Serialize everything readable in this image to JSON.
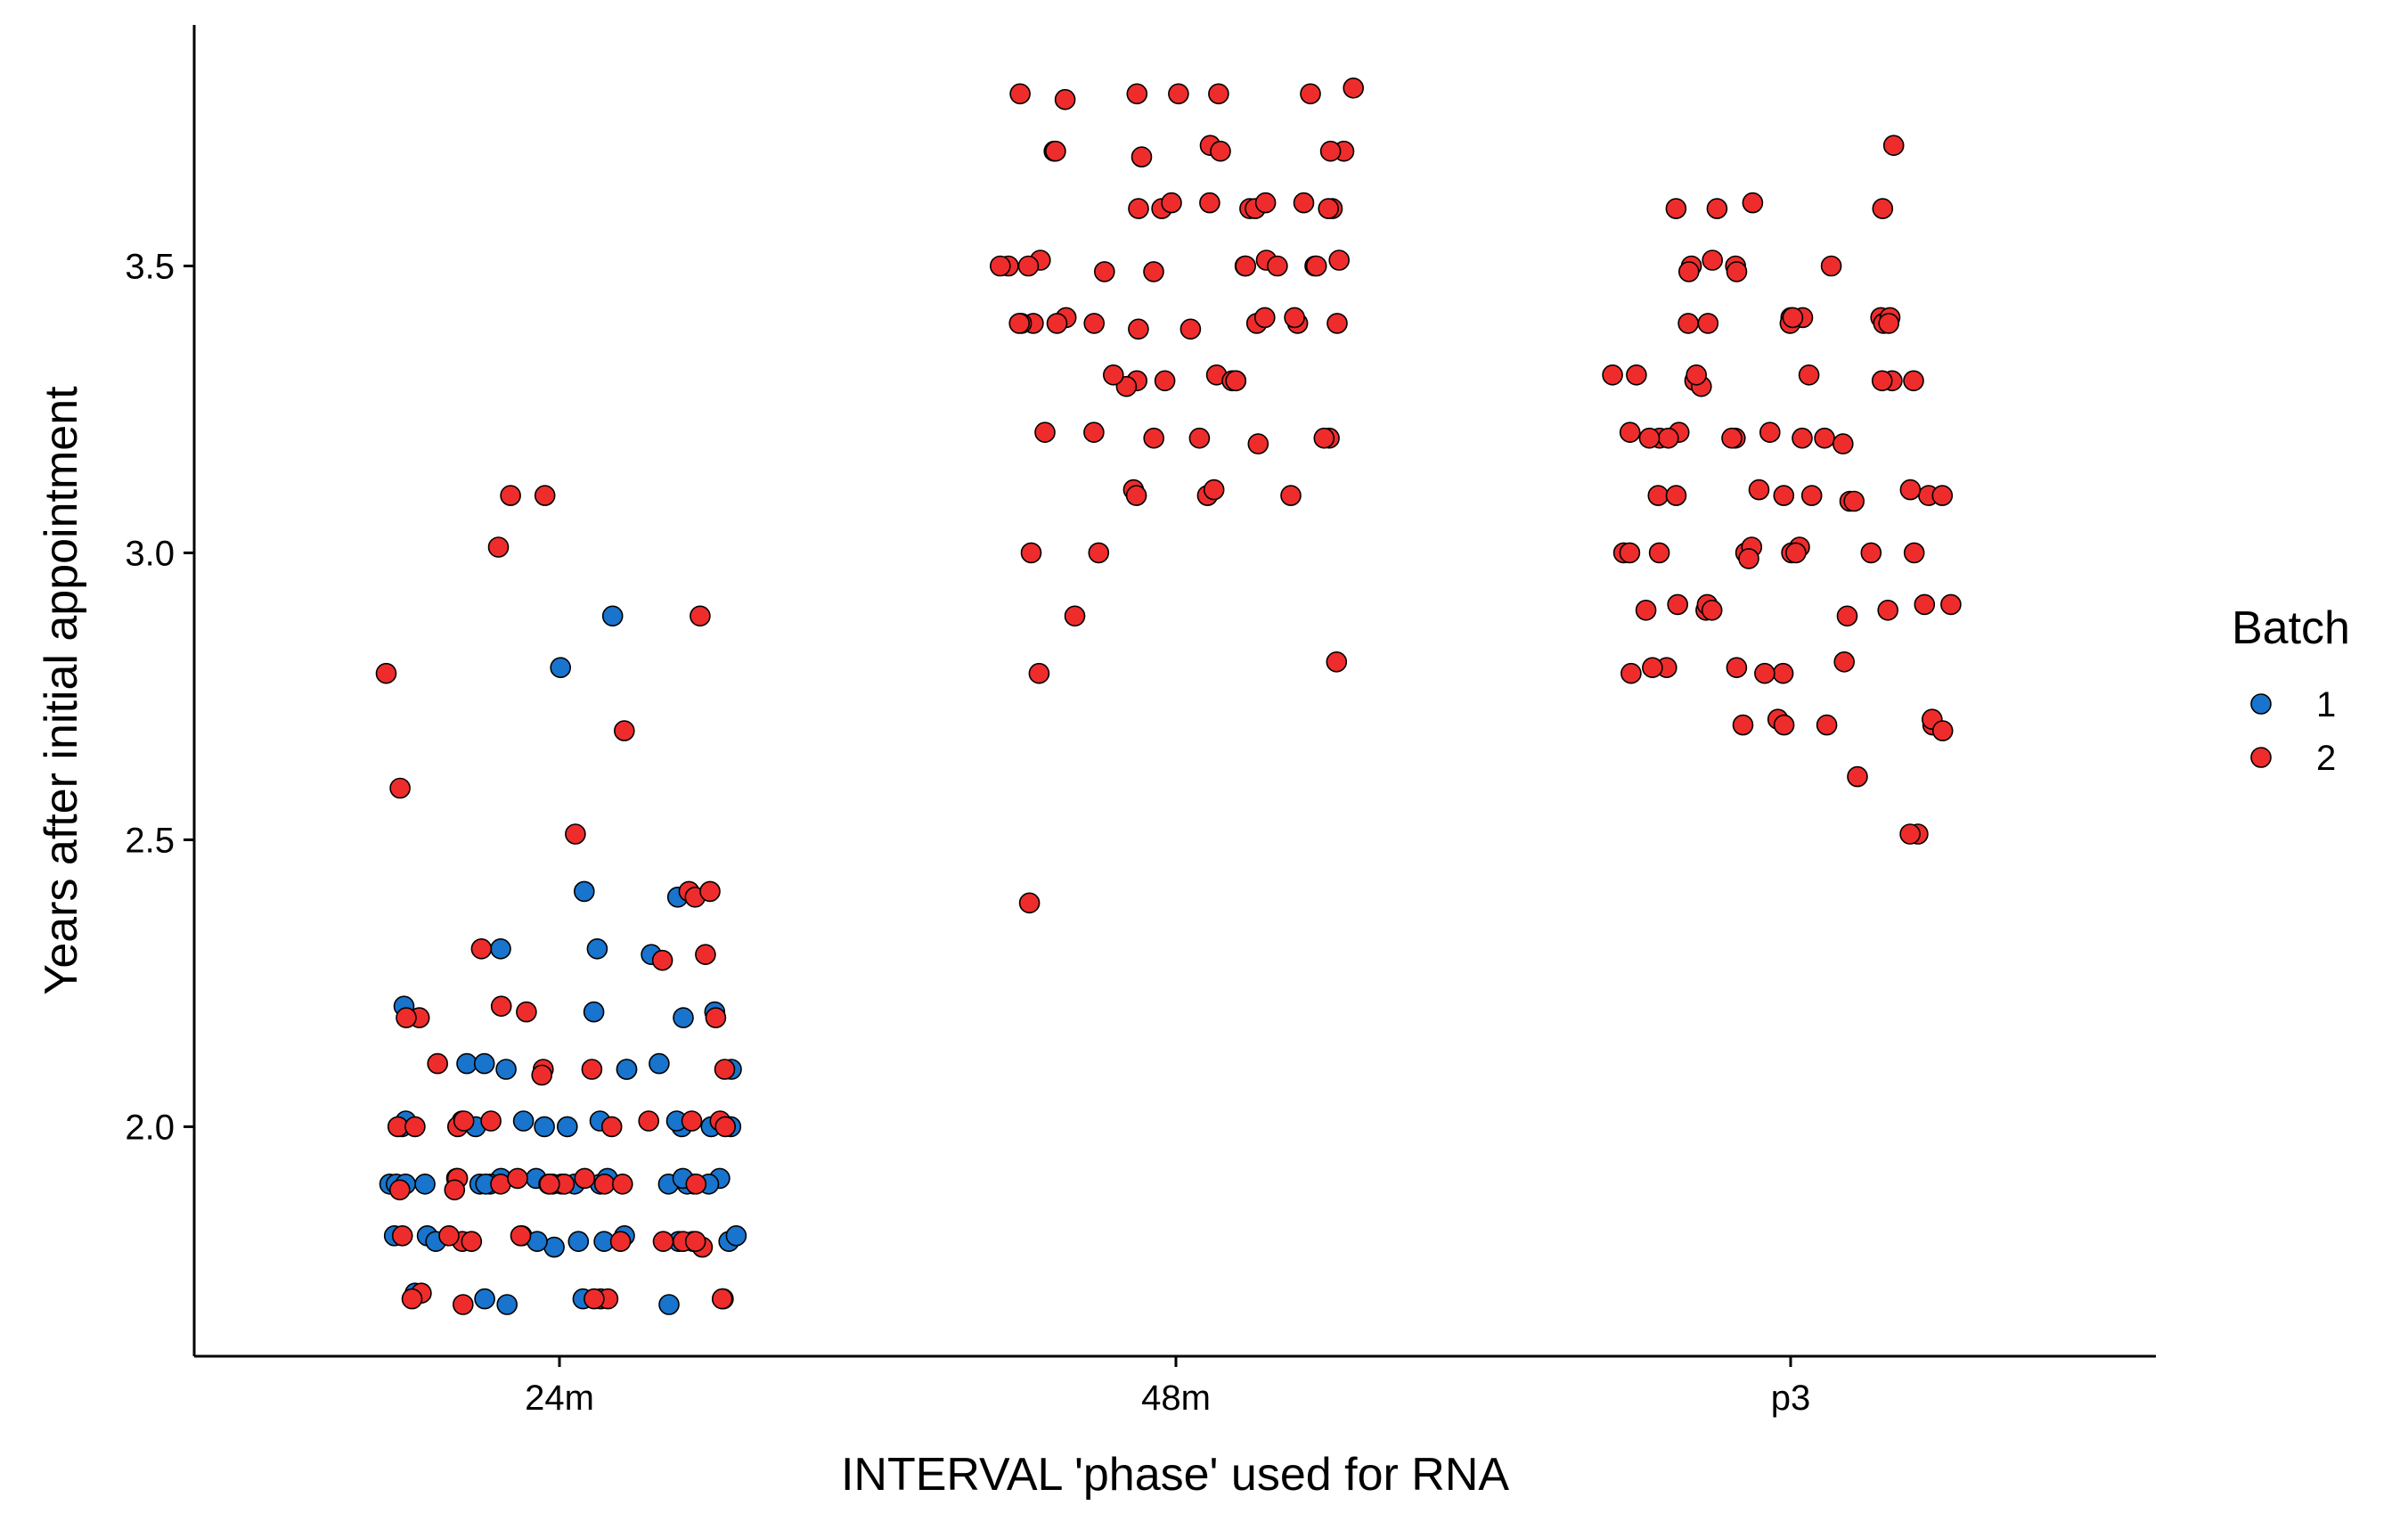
{
  "chart_data": {
    "type": "scatter",
    "title": "",
    "xlabel": "INTERVAL 'phase' used for RNA",
    "ylabel": "Years after initial appointment",
    "categories": [
      "24m",
      "48m",
      "p3"
    ],
    "ylim": [
      1.6,
      3.92
    ],
    "yticks": [
      2.0,
      2.5,
      3.0,
      3.5
    ],
    "ytick_labels": [
      "2.0",
      "2.5",
      "3.0",
      "3.5"
    ],
    "grid": false,
    "legend": {
      "title": "Batch",
      "placement": "right",
      "entries": [
        {
          "label": "1",
          "color": "#1874CD"
        },
        {
          "label": "2",
          "color": "#EE2C2C"
        }
      ]
    },
    "series": [
      {
        "name": "1",
        "color": "#1874CD",
        "points": [
          {
            "category": "24m",
            "y_values": [
              2.8,
              2.89,
              2.4,
              2.41,
              2.31,
              2.31,
              2.3,
              2.21,
              2.2,
              2.2,
              2.19,
              2.1,
              2.11,
              2.1,
              2.11,
              2.1,
              2.11,
              2.1,
              2.01,
              2.0,
              2.0,
              2.01,
              2.0,
              2.0,
              2.01,
              2.0,
              2.01,
              2.0,
              2.0,
              2.01,
              1.9,
              1.91,
              1.9,
              1.9,
              1.91,
              1.9,
              1.9,
              1.91,
              1.9,
              1.9,
              1.9,
              1.91,
              1.9,
              1.9,
              1.9,
              1.91,
              1.9,
              1.9,
              1.9,
              1.91,
              1.9,
              1.81,
              1.8,
              1.81,
              1.8,
              1.8,
              1.81,
              1.8,
              1.8,
              1.81,
              1.8,
              1.79,
              1.8,
              1.81,
              1.7,
              1.71,
              1.7,
              1.7,
              1.69,
              1.69,
              1.7
            ]
          }
        ]
      },
      {
        "name": "2",
        "color": "#EE2C2C",
        "points": [
          {
            "category": "24m",
            "y_values": [
              3.1,
              3.1,
              3.01,
              2.89,
              2.79,
              2.69,
              2.59,
              2.51,
              2.41,
              2.4,
              2.41,
              2.31,
              2.3,
              2.29,
              2.21,
              2.19,
              2.19,
              2.2,
              2.19,
              2.1,
              2.09,
              2.1,
              2.11,
              2.1,
              2.01,
              2.0,
              2.01,
              2.0,
              2.01,
              2.0,
              2.0,
              2.01,
              2.0,
              2.01,
              1.9,
              1.91,
              1.89,
              1.9,
              1.9,
              1.91,
              1.9,
              1.9,
              1.89,
              1.9,
              1.91,
              1.9,
              1.8,
              1.81,
              1.8,
              1.8,
              1.81,
              1.8,
              1.79,
              1.8,
              1.81,
              1.8,
              1.7,
              1.7,
              1.71,
              1.7,
              1.7,
              1.69
            ]
          },
          {
            "category": "48m",
            "y_values": [
              3.8,
              3.8,
              3.8,
              3.81,
              3.79,
              3.8,
              3.8,
              3.7,
              3.7,
              3.7,
              3.7,
              3.71,
              3.7,
              3.69,
              3.6,
              3.6,
              3.61,
              3.6,
              3.6,
              3.6,
              3.61,
              3.61,
              3.6,
              3.61,
              3.51,
              3.5,
              3.5,
              3.49,
              3.5,
              3.5,
              3.51,
              3.5,
              3.5,
              3.5,
              3.5,
              3.49,
              3.51,
              3.41,
              3.4,
              3.4,
              3.4,
              3.41,
              3.4,
              3.4,
              3.41,
              3.4,
              3.4,
              3.39,
              3.4,
              3.39,
              3.3,
              3.31,
              3.3,
              3.29,
              3.3,
              3.3,
              3.3,
              3.31,
              3.2,
              3.2,
              3.21,
              3.2,
              3.19,
              3.21,
              3.2,
              3.1,
              3.11,
              3.1,
              3.1,
              3.11,
              3.0,
              3.0,
              2.89,
              2.79,
              2.81,
              2.39
            ]
          },
          {
            "category": "p3",
            "y_values": [
              3.71,
              3.6,
              3.6,
              3.6,
              3.61,
              3.5,
              3.5,
              3.49,
              3.5,
              3.51,
              3.49,
              3.4,
              3.41,
              3.4,
              3.41,
              3.41,
              3.4,
              3.4,
              3.41,
              3.4,
              3.41,
              3.3,
              3.29,
              3.31,
              3.31,
              3.3,
              3.31,
              3.3,
              3.3,
              3.31,
              3.21,
              3.2,
              3.2,
              3.21,
              3.2,
              3.2,
              3.21,
              3.2,
              3.19,
              3.2,
              3.2,
              3.1,
              3.09,
              3.1,
              3.1,
              3.11,
              3.09,
              3.1,
              3.11,
              3.1,
              3.1,
              3.0,
              3.0,
              3.01,
              3.0,
              3.0,
              3.01,
              3.0,
              3.0,
              2.99,
              3.0,
              3.0,
              2.91,
              2.9,
              2.89,
              2.91,
              2.9,
              2.9,
              2.91,
              2.9,
              2.91,
              2.79,
              2.8,
              2.81,
              2.79,
              2.8,
              2.8,
              2.79,
              2.7,
              2.7,
              2.71,
              2.7,
              2.71,
              2.7,
              2.69,
              2.61,
              2.51,
              2.51
            ]
          }
        ]
      }
    ]
  }
}
